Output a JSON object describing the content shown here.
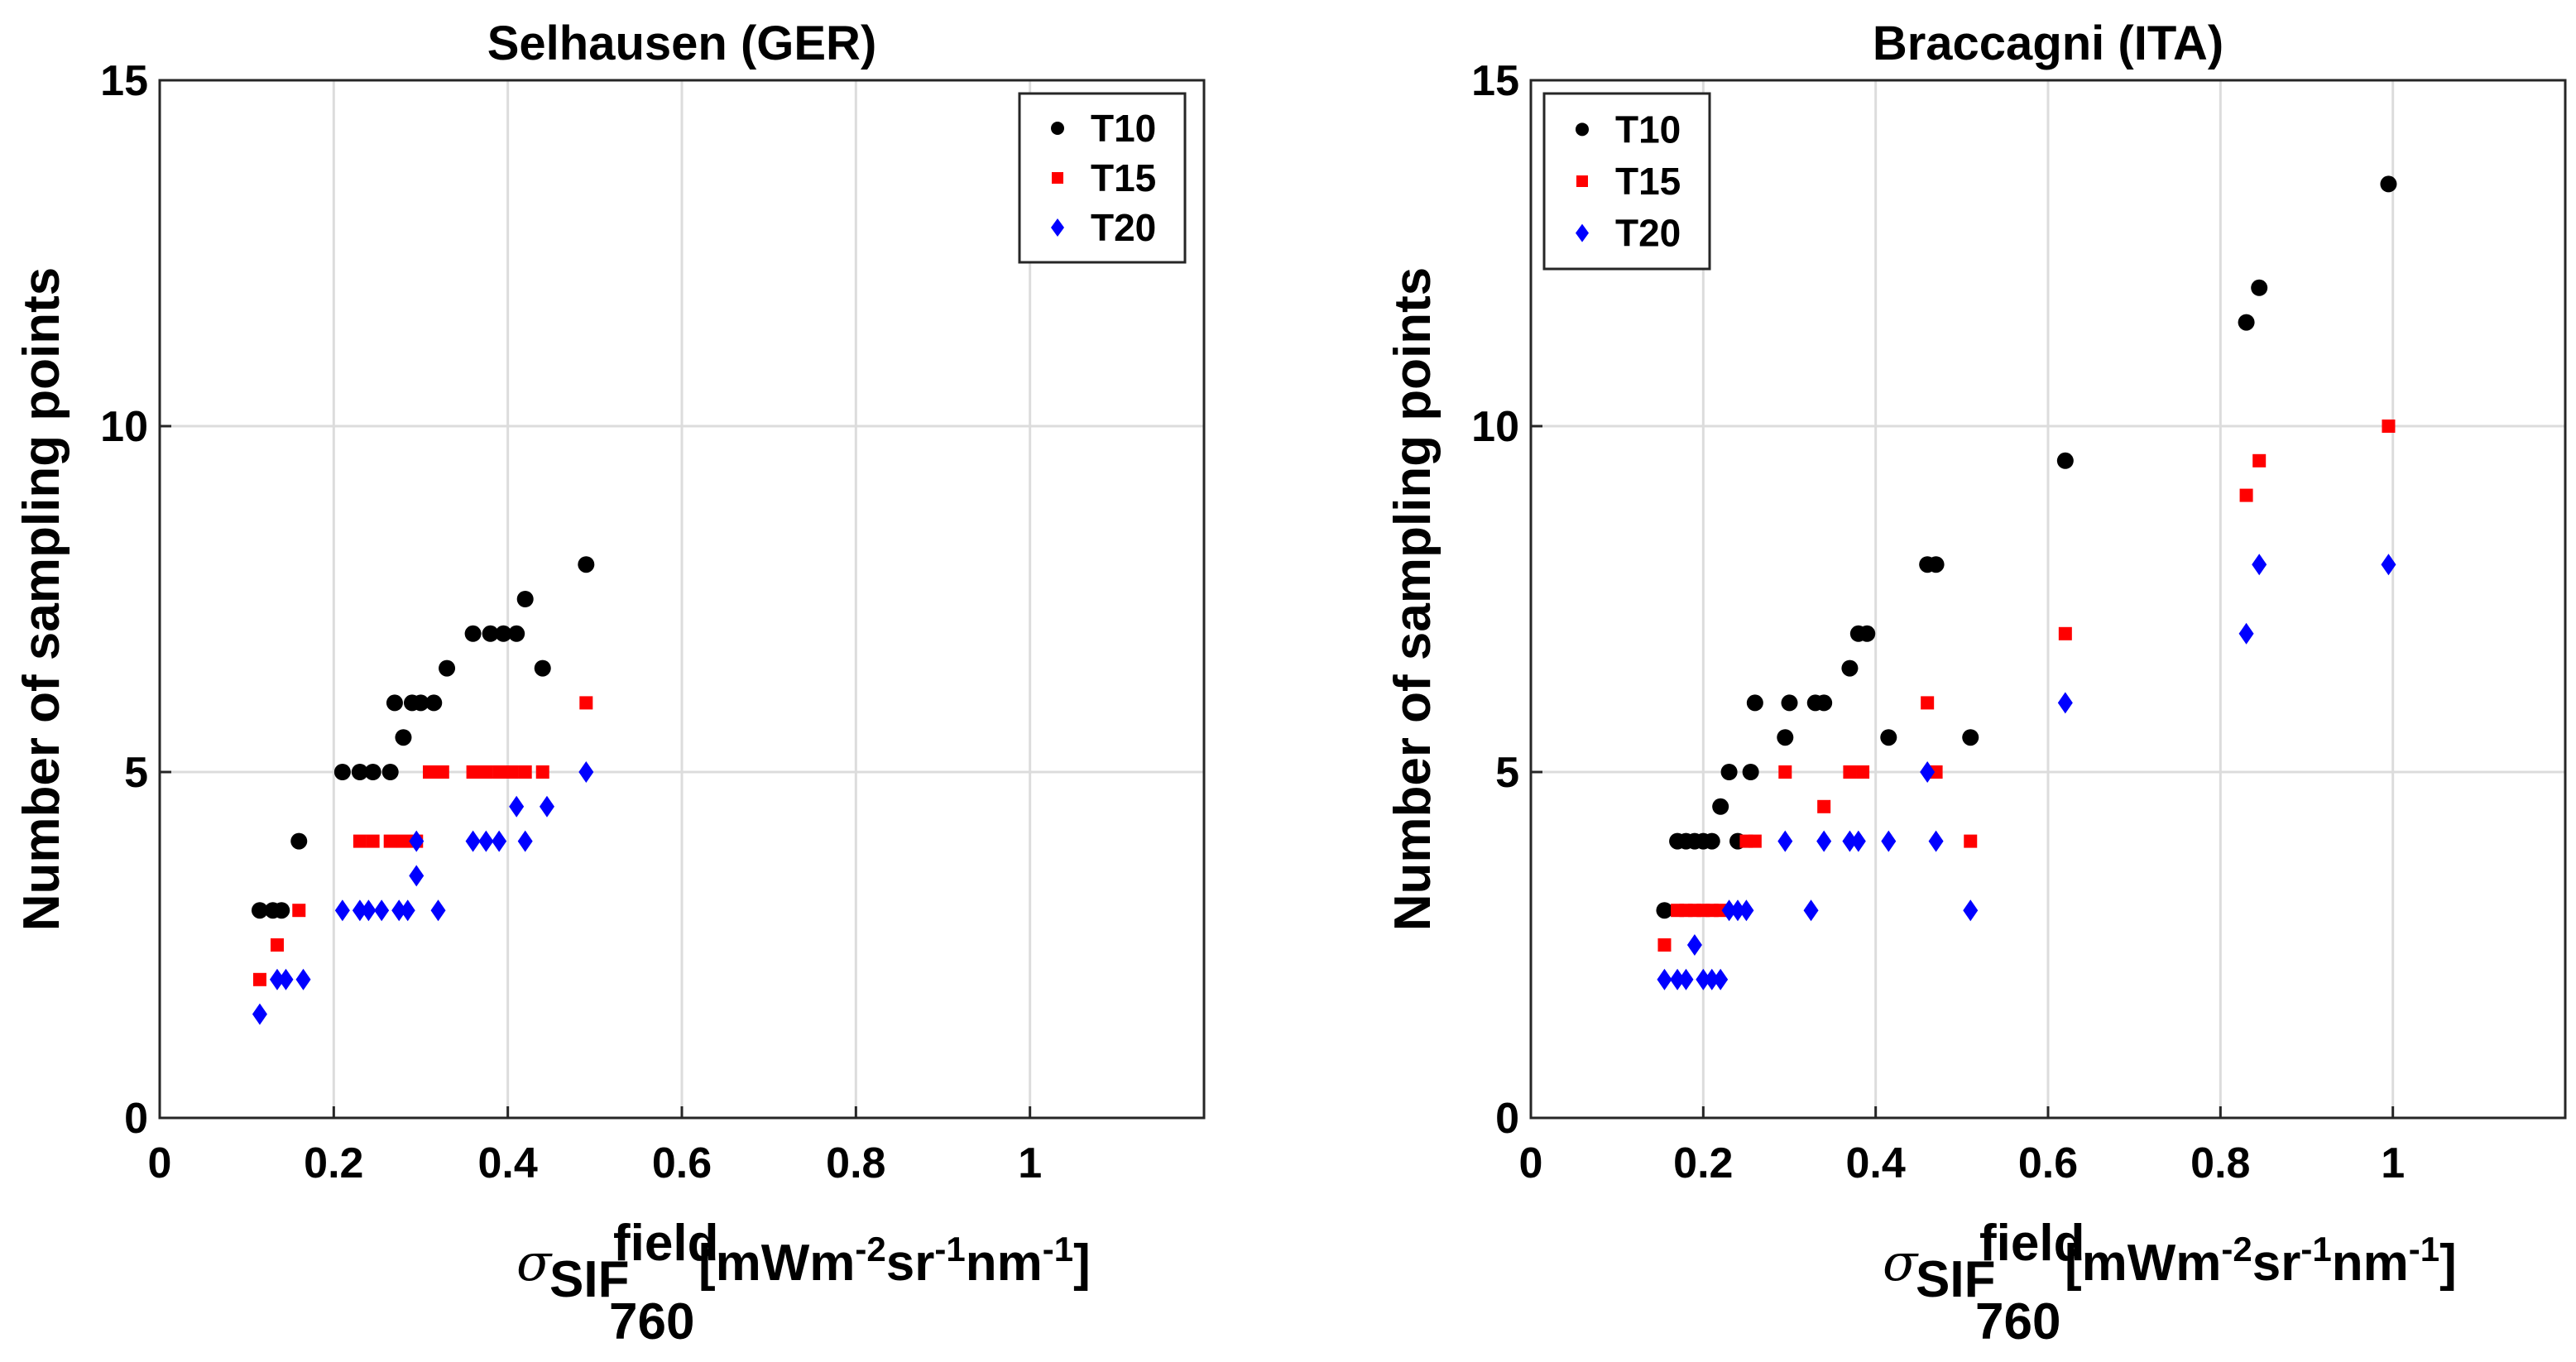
{
  "chart_data": [
    {
      "type": "scatter",
      "title": "Selhausen (GER)",
      "ylabel": "Number of sampling points",
      "xlabel": {
        "symbol": "σ",
        "sub": "SIF",
        "subsub": "760",
        "sup": "field",
        "units": "[mWm-2sr-1nm-1]"
      },
      "xlim": [
        0,
        1.2
      ],
      "ylim": [
        0,
        15
      ],
      "xticks": [
        0,
        0.2,
        0.4,
        0.6,
        0.8,
        1
      ],
      "xtick_labels": [
        "0",
        "0.2",
        "0.4",
        "0.6",
        "0.8",
        "1"
      ],
      "yticks": [
        0,
        5,
        10,
        15
      ],
      "ytick_labels": [
        "0",
        "5",
        "10",
        "15"
      ],
      "grid": true,
      "legend_position": "top-right",
      "series": [
        {
          "name": "T10",
          "color": "#000000",
          "marker": "circle",
          "x": [
            0.115,
            0.13,
            0.14,
            0.16,
            0.21,
            0.23,
            0.245,
            0.265,
            0.27,
            0.28,
            0.29,
            0.3,
            0.315,
            0.33,
            0.36,
            0.38,
            0.395,
            0.41,
            0.42,
            0.44,
            0.49
          ],
          "y": [
            3,
            3,
            3,
            4,
            5,
            5,
            5,
            5,
            6,
            5.5,
            6,
            6,
            6,
            6.5,
            7,
            7,
            7,
            7,
            7.5,
            6.5,
            8
          ]
        },
        {
          "name": "T15",
          "color": "#ff0000",
          "marker": "square",
          "x": [
            0.115,
            0.135,
            0.16,
            0.23,
            0.245,
            0.265,
            0.28,
            0.295,
            0.31,
            0.325,
            0.36,
            0.375,
            0.39,
            0.405,
            0.42,
            0.44,
            0.49
          ],
          "y": [
            2,
            2.5,
            3,
            4,
            4,
            4,
            4,
            4,
            5,
            5,
            5,
            5,
            5,
            5,
            5,
            5,
            6
          ]
        },
        {
          "name": "T20",
          "color": "#0000ff",
          "marker": "diamond",
          "x": [
            0.115,
            0.135,
            0.145,
            0.165,
            0.21,
            0.23,
            0.24,
            0.255,
            0.275,
            0.285,
            0.295,
            0.32,
            0.295,
            0.36,
            0.375,
            0.39,
            0.41,
            0.42,
            0.445,
            0.49
          ],
          "y": [
            1.5,
            2,
            2,
            2,
            3,
            3,
            3,
            3,
            3,
            3,
            3.5,
            3,
            4,
            4,
            4,
            4,
            4.5,
            4,
            4.5,
            5
          ]
        }
      ]
    },
    {
      "type": "scatter",
      "title": "Braccagni (ITA)",
      "ylabel": "Number of sampling points",
      "xlabel": {
        "symbol": "σ",
        "sub": "SIF",
        "subsub": "760",
        "sup": "field",
        "units": "[mWm-2sr-1nm-1]"
      },
      "xlim": [
        0,
        1.2
      ],
      "ylim": [
        0,
        15
      ],
      "xticks": [
        0,
        0.2,
        0.4,
        0.6,
        0.8,
        1
      ],
      "xtick_labels": [
        "0",
        "0.2",
        "0.4",
        "0.6",
        "0.8",
        "1"
      ],
      "yticks": [
        0,
        5,
        10,
        15
      ],
      "ytick_labels": [
        "0",
        "5",
        "10",
        "15"
      ],
      "grid": true,
      "legend_position": "top-left",
      "series": [
        {
          "name": "T10",
          "color": "#000000",
          "marker": "circle",
          "x": [
            0.155,
            0.17,
            0.18,
            0.19,
            0.2,
            0.21,
            0.22,
            0.23,
            0.24,
            0.255,
            0.26,
            0.295,
            0.3,
            0.33,
            0.34,
            0.37,
            0.38,
            0.39,
            0.415,
            0.46,
            0.47,
            0.51,
            0.62,
            0.83,
            0.845,
            0.995
          ],
          "y": [
            3,
            4,
            4,
            4,
            4,
            4,
            4.5,
            5,
            4,
            5,
            6,
            5.5,
            6,
            6,
            6,
            6.5,
            7,
            7,
            5.5,
            8,
            8,
            5.5,
            9.5,
            11.5,
            12,
            13.5
          ]
        },
        {
          "name": "T15",
          "color": "#ff0000",
          "marker": "square",
          "x": [
            0.155,
            0.17,
            0.18,
            0.19,
            0.2,
            0.21,
            0.22,
            0.25,
            0.26,
            0.295,
            0.34,
            0.37,
            0.385,
            0.46,
            0.47,
            0.51,
            0.62,
            0.83,
            0.845,
            0.995
          ],
          "y": [
            2.5,
            3,
            3,
            3,
            3,
            3,
            3,
            4,
            4,
            5,
            4.5,
            5,
            5,
            6,
            5,
            4,
            7,
            9,
            9.5,
            10
          ]
        },
        {
          "name": "T20",
          "color": "#0000ff",
          "marker": "diamond",
          "x": [
            0.155,
            0.17,
            0.18,
            0.19,
            0.2,
            0.21,
            0.22,
            0.23,
            0.24,
            0.25,
            0.295,
            0.325,
            0.34,
            0.37,
            0.38,
            0.415,
            0.46,
            0.47,
            0.51,
            0.62,
            0.83,
            0.845,
            0.995
          ],
          "y": [
            2,
            2,
            2,
            2.5,
            2,
            2,
            2,
            3,
            3,
            3,
            4,
            3,
            4,
            4,
            4,
            4,
            5,
            4,
            3,
            6,
            7,
            8,
            8
          ]
        }
      ]
    }
  ]
}
